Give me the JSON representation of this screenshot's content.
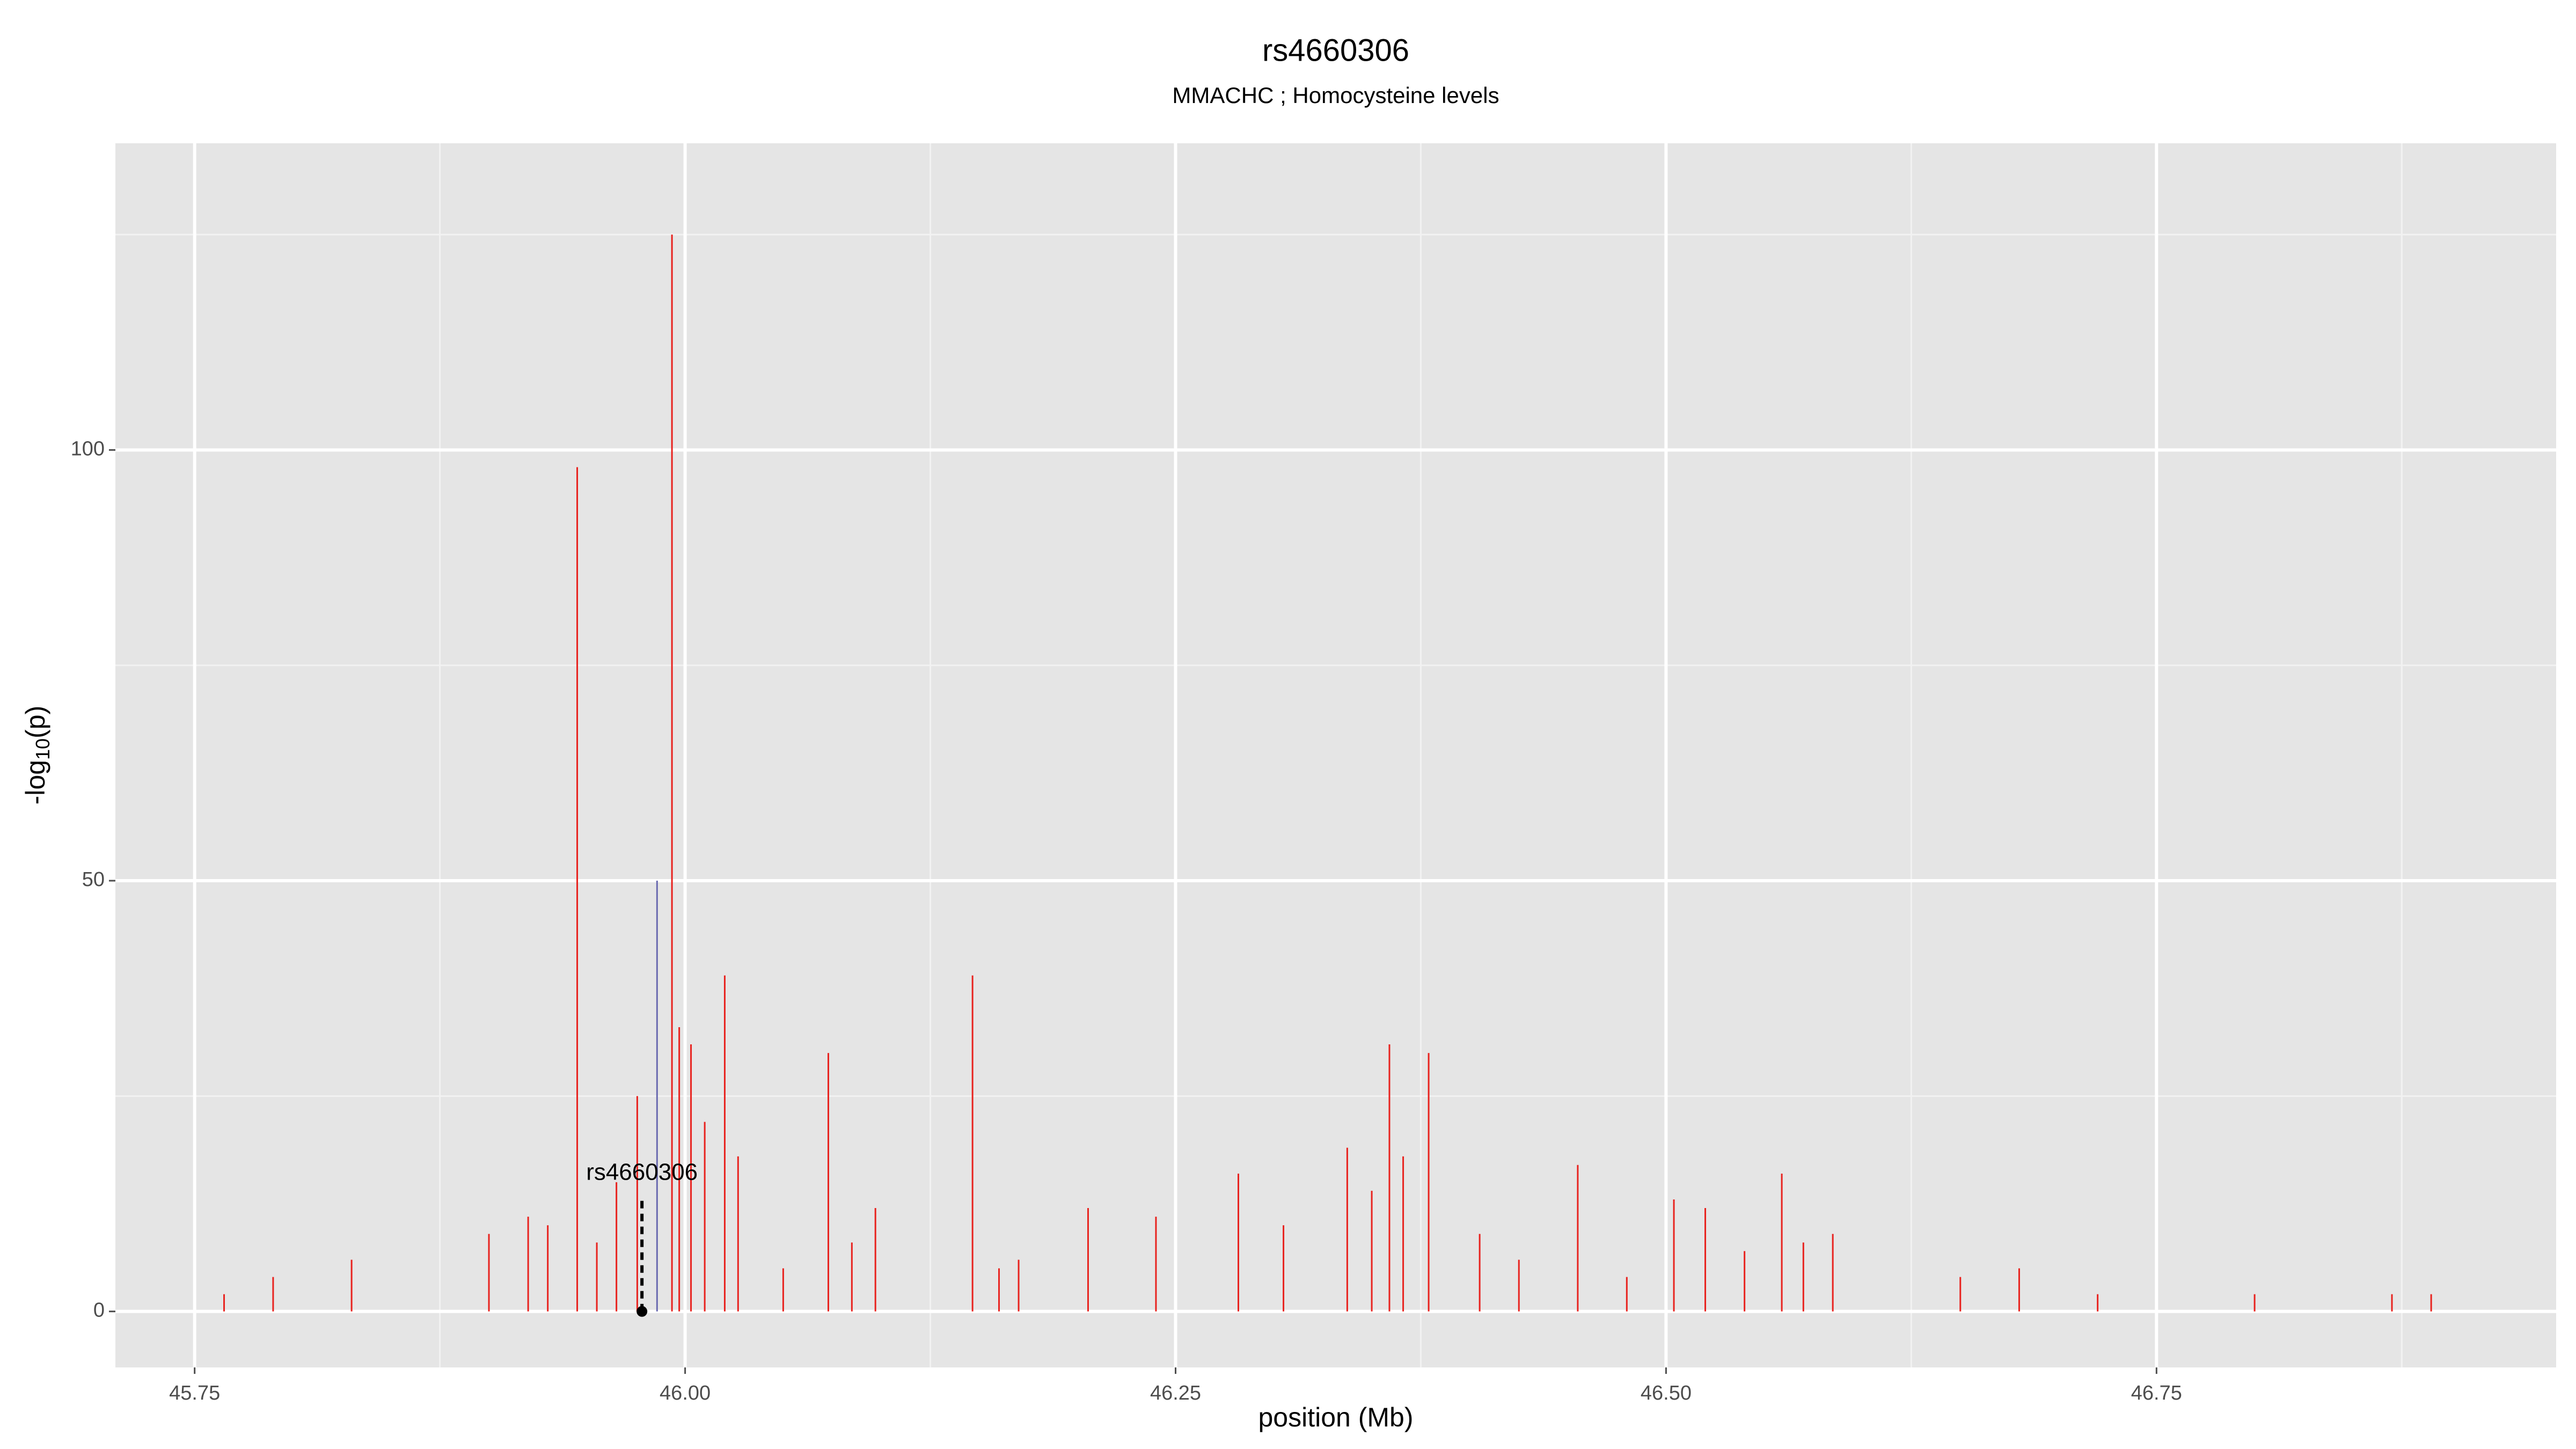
{
  "chart_data": {
    "type": "spike",
    "title": "rs4660306",
    "subtitle": "MMACHC ; Homocysteine levels",
    "xlabel": "position (Mb)",
    "ylabel_parts": [
      "-log",
      "10",
      "(p)"
    ],
    "x": [
      45.765,
      45.79,
      45.83,
      45.9,
      45.92,
      45.93,
      45.945,
      45.955,
      45.965,
      45.9756,
      45.9857,
      45.9933,
      45.997,
      46.003,
      46.01,
      46.0202,
      46.027,
      46.05,
      46.073,
      46.085,
      46.097,
      46.1465,
      46.16,
      46.17,
      46.2054,
      46.24,
      46.282,
      46.305,
      46.3375,
      46.35,
      46.359,
      46.366,
      46.379,
      46.405,
      46.425,
      46.455,
      46.48,
      46.504,
      46.52,
      46.54,
      46.559,
      46.57,
      46.585,
      46.65,
      46.68,
      46.72,
      46.8,
      46.87,
      46.89
    ],
    "values": [
      2,
      4,
      6,
      9,
      11,
      10,
      98,
      8,
      15,
      25,
      50,
      125,
      33,
      31,
      22,
      39,
      18,
      5,
      30,
      8,
      12,
      39,
      5,
      6,
      12,
      11,
      16,
      10,
      19,
      14,
      31,
      18,
      30,
      9,
      6,
      17,
      4,
      13,
      12,
      7,
      16,
      8,
      9,
      4,
      5,
      2,
      2,
      2,
      2
    ],
    "point_colors": [
      "#e8231f",
      "#e8231f",
      "#e8231f",
      "#e8231f",
      "#e8231f",
      "#e8231f",
      "#e8231f",
      "#e8231f",
      "#e8231f",
      "#e8231f",
      "#6a6ab0",
      "#e8231f",
      "#e8231f",
      "#e8231f",
      "#e8231f",
      "#e8231f",
      "#e8231f",
      "#e8231f",
      "#e8231f",
      "#e8231f",
      "#e8231f",
      "#e8231f",
      "#e8231f",
      "#e8231f",
      "#e8231f",
      "#e8231f",
      "#e8231f",
      "#e8231f",
      "#e8231f",
      "#e8231f",
      "#e8231f",
      "#e8231f",
      "#e8231f",
      "#e8231f",
      "#e8231f",
      "#e8231f",
      "#e8231f",
      "#e8231f",
      "#e8231f",
      "#e8231f",
      "#e8231f",
      "#e8231f",
      "#e8231f",
      "#e8231f",
      "#e8231f",
      "#e8231f",
      "#e8231f",
      "#e8231f",
      "#e8231f"
    ],
    "annotations": [
      {
        "text": "rs4660306",
        "x": 45.978,
        "y": 0,
        "label_y": 16,
        "line_top": 13
      }
    ],
    "xlim": [
      45.7096,
      46.9537
    ],
    "ylim": [
      -6.5,
      135.6
    ],
    "xticks": [
      45.75,
      {
        "value": 46,
        "label": "46.00"
      },
      46.25,
      {
        "value": 46.5,
        "label": "46.50"
      },
      46.75
    ],
    "yticks": [
      0,
      50,
      100
    ],
    "x_minor_gridlines": [
      45.875,
      46.125,
      46.375,
      46.625,
      46.875
    ],
    "y_minor_gridlines": [
      25,
      75,
      125
    ],
    "grid": true
  }
}
